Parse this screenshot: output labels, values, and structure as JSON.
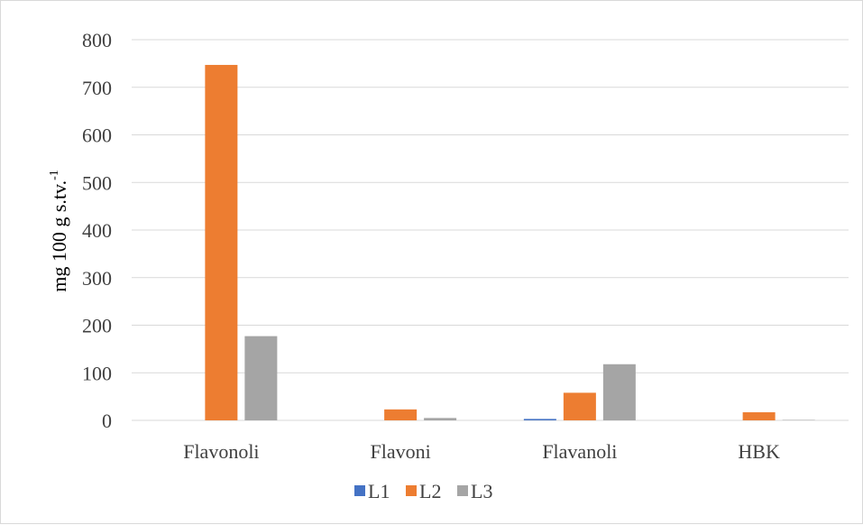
{
  "chart_data": {
    "type": "bar",
    "categories": [
      "Flavonoli",
      "Flavoni",
      "Flavanoli",
      "HBK"
    ],
    "series": [
      {
        "name": "L1",
        "color": "#4472C4",
        "values": [
          0,
          0,
          3,
          0
        ]
      },
      {
        "name": "L2",
        "color": "#ED7D31",
        "values": [
          747,
          23,
          58,
          17
        ]
      },
      {
        "name": "L3",
        "color": "#A5A5A5",
        "values": [
          177,
          5,
          118,
          1
        ]
      }
    ],
    "ylabel_main": "mg 100 g s.tv.",
    "ylabel_sup": "-1",
    "xlabel": "",
    "ylim": [
      0,
      800
    ],
    "yticks": [
      0,
      100,
      200,
      300,
      400,
      500,
      600,
      700,
      800
    ],
    "grid": true,
    "legend_position": "bottom"
  }
}
